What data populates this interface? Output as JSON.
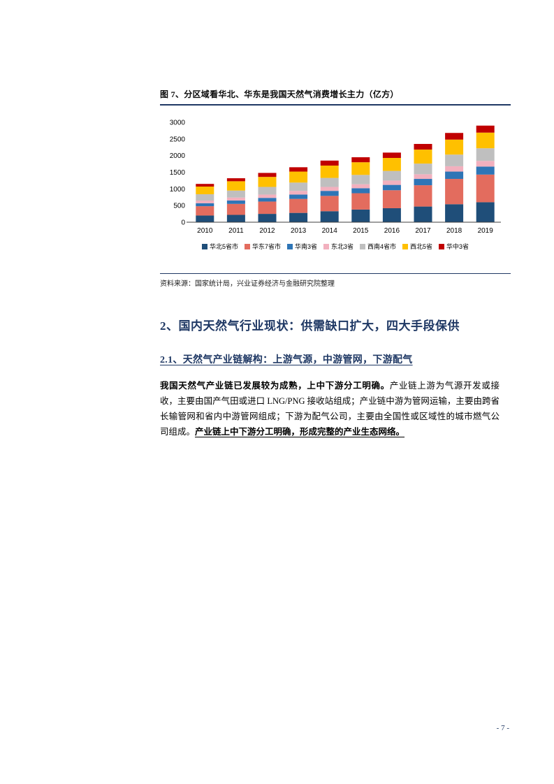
{
  "page": {
    "number": "- 7 -"
  },
  "figure": {
    "title": "图 7、分区域看华北、华东是我国天然气消费增长主力（亿方）",
    "source": "资料来源：国家统计局，兴业证券经济与金融研究院整理"
  },
  "sections": {
    "h1": "2、国内天然气行业现状：供需缺口扩大，四大手段保供",
    "h2": "2.1、天然气产业链解构：上游气源，中游管网，下游配气",
    "paragraph": {
      "bold_lead": "我国天然气产业链已发展较为成熟，上中下游分工明确。",
      "body": "产业链上游为气源开发或接收，主要由国产气田或进口 LNG/PNG 接收站组成；产业链中游为管网运输，主要由跨省长输管网和省内中游管网组成；下游为配气公司，主要由全国性或区域性的城市燃气公司组成。",
      "bold_tail": "产业链上中下游分工明确，形成完整的产业生态网络。"
    }
  },
  "chart_data": {
    "type": "bar",
    "stacked": true,
    "title": "",
    "xlabel": "",
    "ylabel": "",
    "ylim": [
      0,
      3000
    ],
    "ytick_step": 500,
    "grid": false,
    "legend_position": "bottom",
    "categories": [
      "2010",
      "2011",
      "2012",
      "2013",
      "2014",
      "2015",
      "2016",
      "2017",
      "2018",
      "2019"
    ],
    "series": [
      {
        "name": "华北5省市",
        "color": "#1F4E79",
        "values": [
          200,
          220,
          250,
          280,
          330,
          380,
          420,
          470,
          540,
          600
        ]
      },
      {
        "name": "华东7省市",
        "color": "#E36C5E",
        "values": [
          280,
          330,
          370,
          420,
          460,
          490,
          540,
          640,
          760,
          830
        ]
      },
      {
        "name": "华南3省",
        "color": "#2E75B6",
        "values": [
          90,
          100,
          110,
          130,
          150,
          150,
          160,
          190,
          220,
          240
        ]
      },
      {
        "name": "东北3省",
        "color": "#F2B0BE",
        "values": [
          80,
          90,
          100,
          110,
          120,
          120,
          130,
          140,
          160,
          170
        ]
      },
      {
        "name": "西南4省市",
        "color": "#BFBFBF",
        "values": [
          190,
          210,
          230,
          250,
          270,
          280,
          290,
          320,
          350,
          380
        ]
      },
      {
        "name": "西北5省",
        "color": "#FFC000",
        "values": [
          230,
          280,
          300,
          330,
          370,
          380,
          390,
          420,
          450,
          470
        ]
      },
      {
        "name": "华中3省",
        "color": "#C00000",
        "values": [
          80,
          90,
          120,
          130,
          150,
          150,
          160,
          170,
          200,
          210
        ]
      }
    ]
  }
}
